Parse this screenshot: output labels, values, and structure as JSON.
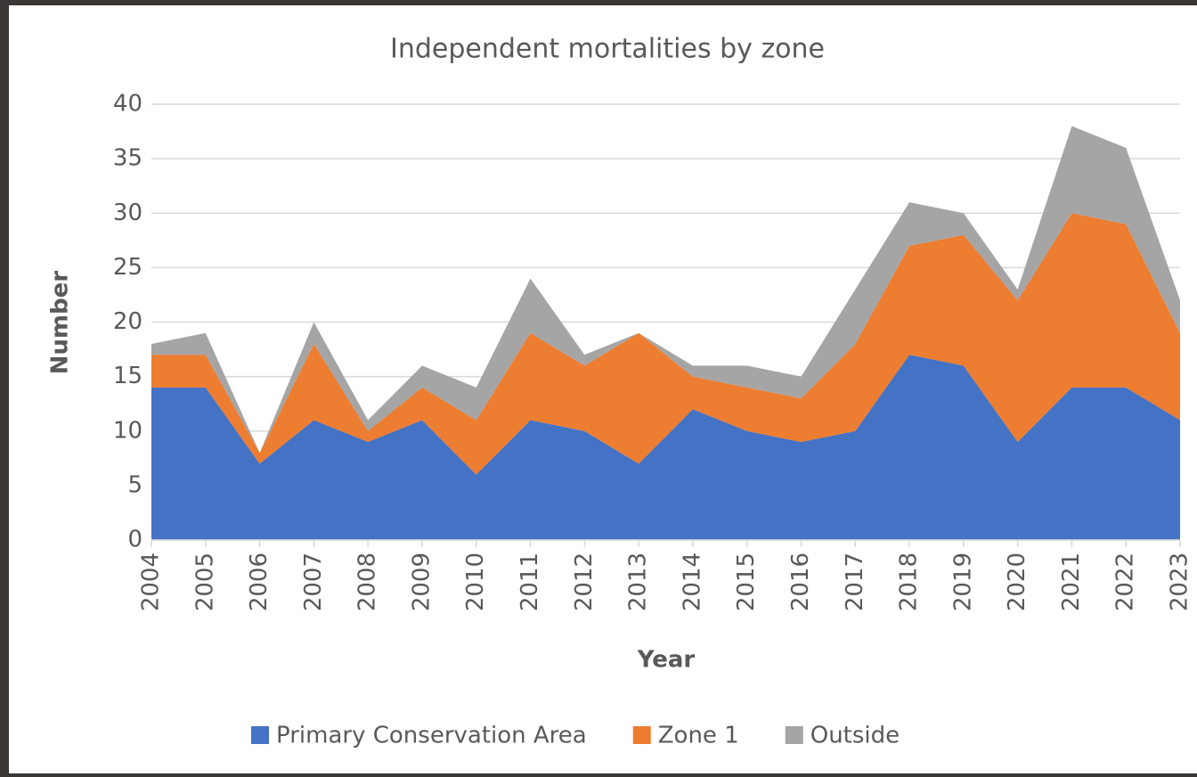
{
  "chart_data": {
    "type": "stacked_area",
    "title": "Independent  mortalities by zone",
    "x_label": "Year",
    "y_label": "Number",
    "categories": [
      "2004",
      "2005",
      "2006",
      "2007",
      "2008",
      "2009",
      "2010",
      "2011",
      "2012",
      "2013",
      "2014",
      "2015",
      "2016",
      "2017",
      "2018",
      "2019",
      "2020",
      "2021",
      "2022",
      "2023"
    ],
    "series": [
      {
        "name": "Primary Conservation Area",
        "color": "#4472c4",
        "values": [
          14,
          14,
          7,
          11,
          9,
          11,
          6,
          11,
          10,
          7,
          12,
          10,
          9,
          10,
          17,
          16,
          9,
          14,
          14,
          11
        ]
      },
      {
        "name": "Zone 1",
        "color": "#ed7d31",
        "values": [
          3,
          3,
          1,
          7,
          1,
          3,
          5,
          8,
          6,
          12,
          3,
          4,
          4,
          8,
          10,
          12,
          13,
          16,
          15,
          8
        ]
      },
      {
        "name": "Outside",
        "color": "#a5a5a5",
        "values": [
          1,
          2,
          0,
          2,
          1,
          2,
          3,
          5,
          1,
          0,
          1,
          2,
          2,
          5,
          4,
          2,
          1,
          8,
          7,
          3
        ]
      }
    ],
    "ylim": [
      0,
      40
    ],
    "yticks": [
      0,
      5,
      10,
      15,
      20,
      25,
      30,
      35,
      40
    ],
    "grid": true,
    "legend": "bottom"
  }
}
